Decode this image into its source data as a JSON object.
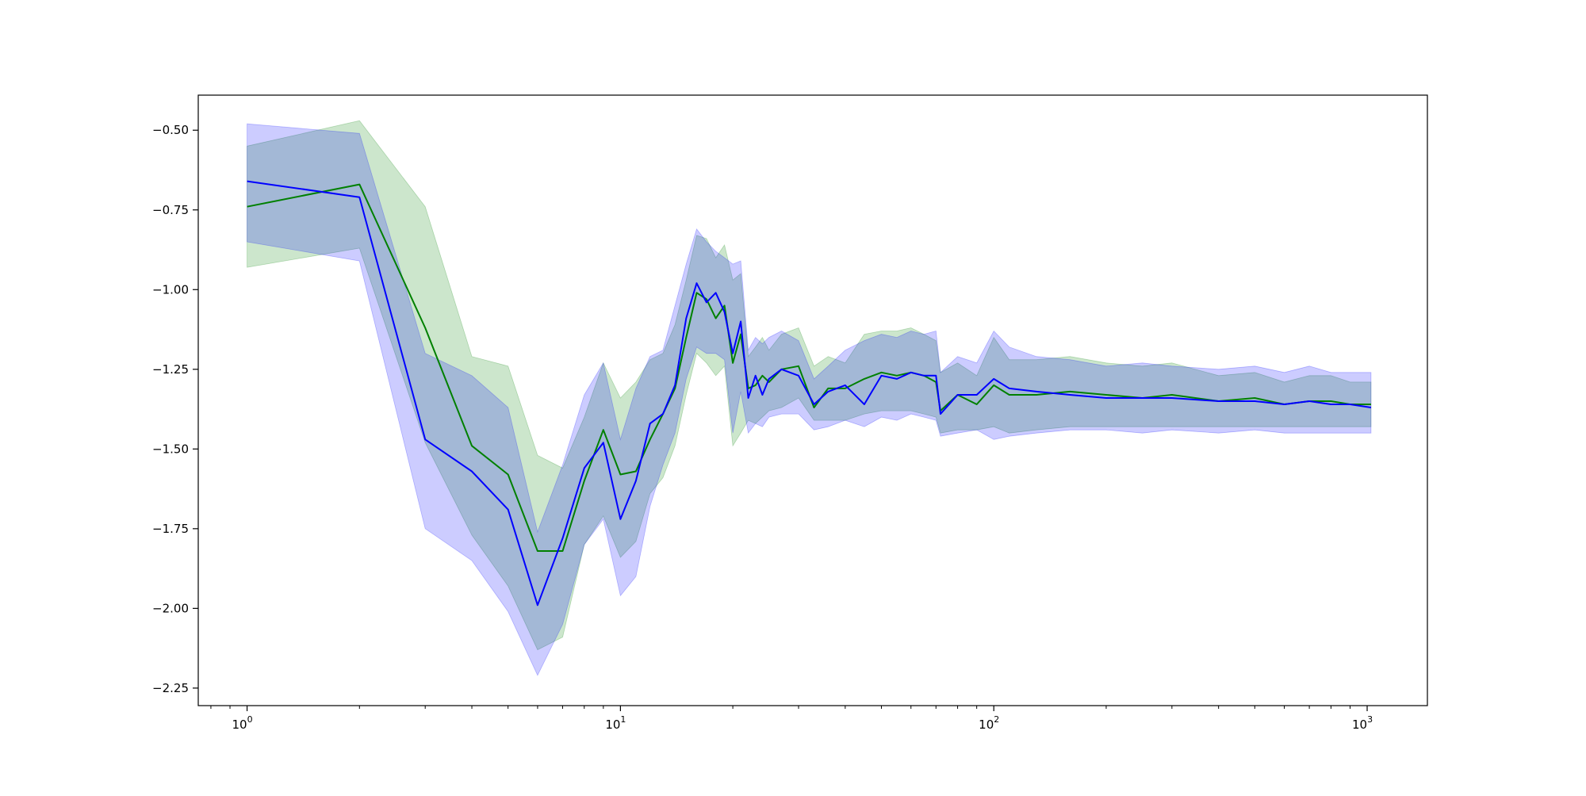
{
  "chart_data": {
    "type": "line",
    "title": "",
    "xlabel": "",
    "ylabel": "",
    "x_scale": "log",
    "xlim": [
      0.74,
      1450
    ],
    "ylim": [
      -2.305,
      -0.39
    ],
    "grid": false,
    "legend": "none",
    "x_ticks": [
      {
        "value": 1,
        "base": "10",
        "exp": "0"
      },
      {
        "value": 10,
        "base": "10",
        "exp": "1"
      },
      {
        "value": 100,
        "base": "10",
        "exp": "2"
      },
      {
        "value": 1000,
        "base": "10",
        "exp": "3"
      }
    ],
    "y_ticks": [
      {
        "value": -0.5,
        "label": "−0.50"
      },
      {
        "value": -0.75,
        "label": "−0.75"
      },
      {
        "value": -1.0,
        "label": "−1.00"
      },
      {
        "value": -1.25,
        "label": "−1.25"
      },
      {
        "value": -1.5,
        "label": "−1.50"
      },
      {
        "value": -1.75,
        "label": "−1.75"
      },
      {
        "value": -2.0,
        "label": "−2.00"
      },
      {
        "value": -2.25,
        "label": "−2.25"
      }
    ],
    "series": [
      {
        "color": "#008000",
        "band_color": "#008000",
        "band_opacity": 0.2,
        "x": [
          1,
          2,
          3,
          4,
          5,
          6,
          7,
          8,
          9,
          10,
          11,
          12,
          13,
          14,
          15,
          16,
          17,
          18,
          19,
          20,
          21,
          22,
          23,
          24,
          25,
          27,
          30,
          33,
          36,
          40,
          45,
          50,
          55,
          60,
          65,
          70,
          72,
          80,
          90,
          100,
          110,
          130,
          160,
          200,
          250,
          300,
          400,
          500,
          600,
          700,
          800,
          900,
          1024
        ],
        "y": [
          -0.74,
          -0.67,
          -1.12,
          -1.49,
          -1.58,
          -1.82,
          -1.82,
          -1.6,
          -1.44,
          -1.58,
          -1.57,
          -1.47,
          -1.39,
          -1.31,
          -1.15,
          -1.01,
          -1.03,
          -1.09,
          -1.05,
          -1.23,
          -1.14,
          -1.31,
          -1.3,
          -1.27,
          -1.29,
          -1.25,
          -1.24,
          -1.37,
          -1.31,
          -1.31,
          -1.28,
          -1.26,
          -1.27,
          -1.26,
          -1.27,
          -1.29,
          -1.38,
          -1.33,
          -1.36,
          -1.3,
          -1.33,
          -1.33,
          -1.32,
          -1.33,
          -1.34,
          -1.33,
          -1.35,
          -1.34,
          -1.36,
          -1.35,
          -1.35,
          -1.36,
          -1.36
        ],
        "lower": [
          -0.93,
          -0.87,
          -1.48,
          -1.77,
          -1.93,
          -2.13,
          -2.09,
          -1.8,
          -1.71,
          -1.84,
          -1.79,
          -1.64,
          -1.59,
          -1.49,
          -1.33,
          -1.2,
          -1.23,
          -1.27,
          -1.24,
          -1.49,
          -1.45,
          -1.41,
          -1.42,
          -1.4,
          -1.38,
          -1.37,
          -1.34,
          -1.41,
          -1.41,
          -1.41,
          -1.39,
          -1.38,
          -1.38,
          -1.38,
          -1.39,
          -1.4,
          -1.45,
          -1.44,
          -1.44,
          -1.43,
          -1.45,
          -1.44,
          -1.43,
          -1.43,
          -1.43,
          -1.43,
          -1.43,
          -1.43,
          -1.43,
          -1.43,
          -1.43,
          -1.43,
          -1.43
        ],
        "upper": [
          -0.55,
          -0.47,
          -0.74,
          -1.21,
          -1.24,
          -1.52,
          -1.56,
          -1.4,
          -1.23,
          -1.34,
          -1.29,
          -1.22,
          -1.2,
          -1.11,
          -0.97,
          -0.83,
          -0.84,
          -0.9,
          -0.86,
          -0.97,
          -0.95,
          -1.21,
          -1.18,
          -1.15,
          -1.19,
          -1.14,
          -1.12,
          -1.24,
          -1.21,
          -1.23,
          -1.14,
          -1.13,
          -1.13,
          -1.12,
          -1.14,
          -1.16,
          -1.26,
          -1.23,
          -1.27,
          -1.15,
          -1.22,
          -1.22,
          -1.21,
          -1.23,
          -1.24,
          -1.23,
          -1.27,
          -1.26,
          -1.29,
          -1.27,
          -1.27,
          -1.29,
          -1.29
        ]
      },
      {
        "color": "#0000ff",
        "band_color": "#0000ff",
        "band_opacity": 0.2,
        "x": [
          1,
          2,
          3,
          4,
          5,
          6,
          7,
          8,
          9,
          10,
          11,
          12,
          13,
          14,
          15,
          16,
          17,
          18,
          19,
          20,
          21,
          22,
          23,
          24,
          25,
          27,
          30,
          33,
          36,
          40,
          45,
          50,
          55,
          60,
          65,
          70,
          72,
          80,
          90,
          100,
          110,
          130,
          160,
          200,
          250,
          300,
          400,
          500,
          600,
          700,
          800,
          900,
          1024
        ],
        "y": [
          -0.66,
          -0.71,
          -1.47,
          -1.57,
          -1.69,
          -1.99,
          -1.78,
          -1.56,
          -1.48,
          -1.72,
          -1.6,
          -1.42,
          -1.39,
          -1.3,
          -1.09,
          -0.98,
          -1.04,
          -1.01,
          -1.07,
          -1.2,
          -1.1,
          -1.34,
          -1.27,
          -1.33,
          -1.28,
          -1.25,
          -1.27,
          -1.36,
          -1.32,
          -1.3,
          -1.36,
          -1.27,
          -1.28,
          -1.26,
          -1.27,
          -1.27,
          -1.39,
          -1.33,
          -1.33,
          -1.28,
          -1.31,
          -1.32,
          -1.33,
          -1.34,
          -1.34,
          -1.34,
          -1.35,
          -1.35,
          -1.36,
          -1.35,
          -1.36,
          -1.36,
          -1.37
        ],
        "lower": [
          -0.85,
          -0.91,
          -1.75,
          -1.85,
          -2.01,
          -2.21,
          -2.05,
          -1.8,
          -1.72,
          -1.96,
          -1.9,
          -1.68,
          -1.55,
          -1.45,
          -1.28,
          -1.18,
          -1.2,
          -1.2,
          -1.22,
          -1.45,
          -1.32,
          -1.45,
          -1.42,
          -1.43,
          -1.4,
          -1.39,
          -1.39,
          -1.44,
          -1.43,
          -1.41,
          -1.43,
          -1.4,
          -1.41,
          -1.39,
          -1.4,
          -1.41,
          -1.46,
          -1.45,
          -1.44,
          -1.47,
          -1.46,
          -1.45,
          -1.44,
          -1.44,
          -1.45,
          -1.44,
          -1.45,
          -1.44,
          -1.45,
          -1.45,
          -1.45,
          -1.45,
          -1.45
        ],
        "upper": [
          -0.48,
          -0.51,
          -1.2,
          -1.27,
          -1.37,
          -1.76,
          -1.55,
          -1.33,
          -1.23,
          -1.47,
          -1.31,
          -1.21,
          -1.19,
          -1.05,
          -0.92,
          -0.81,
          -0.85,
          -0.88,
          -0.9,
          -0.92,
          -0.91,
          -1.19,
          -1.15,
          -1.17,
          -1.15,
          -1.13,
          -1.16,
          -1.28,
          -1.24,
          -1.19,
          -1.16,
          -1.14,
          -1.15,
          -1.13,
          -1.14,
          -1.13,
          -1.26,
          -1.21,
          -1.23,
          -1.13,
          -1.18,
          -1.21,
          -1.22,
          -1.24,
          -1.23,
          -1.24,
          -1.25,
          -1.24,
          -1.26,
          -1.24,
          -1.26,
          -1.26,
          -1.26
        ]
      }
    ]
  }
}
